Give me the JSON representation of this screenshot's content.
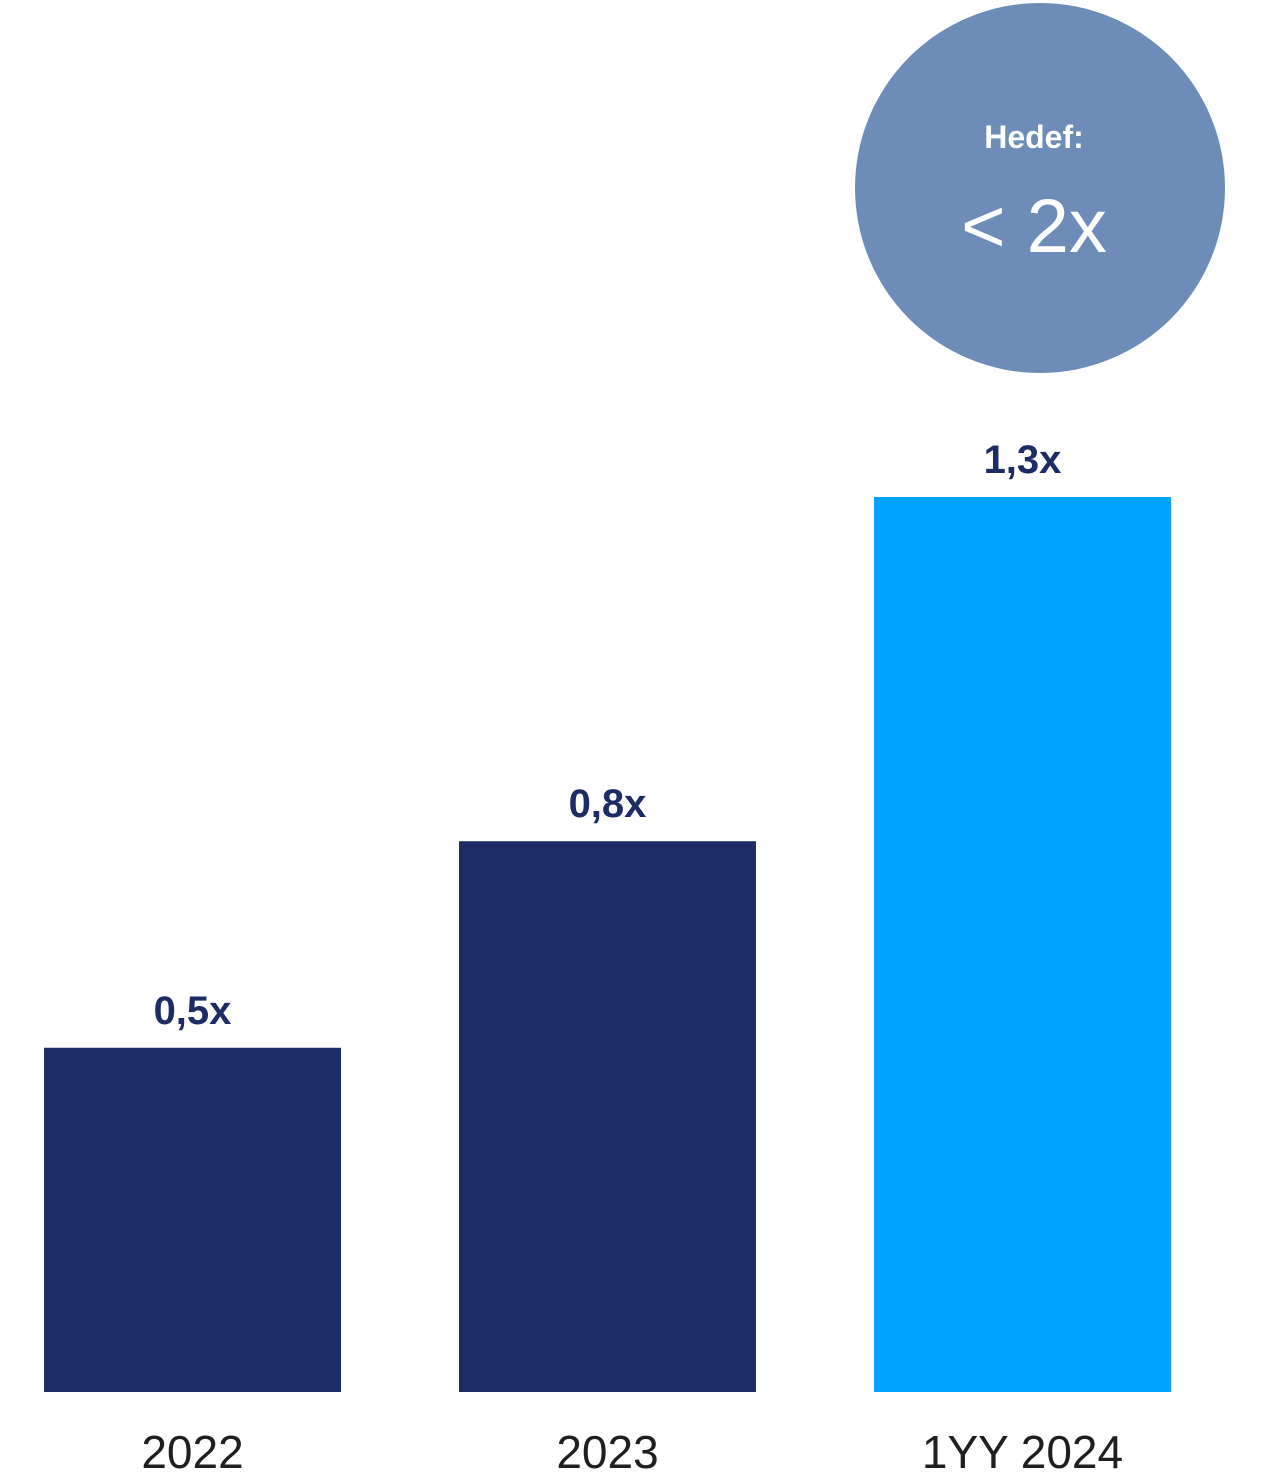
{
  "chart_data": {
    "type": "bar",
    "categories": [
      "2022",
      "2023",
      "1YY 2024"
    ],
    "values": [
      0.5,
      0.8,
      1.3
    ],
    "value_labels": [
      "0,5x",
      "0,8x",
      "1,3x"
    ],
    "ylim": [
      0,
      1.3
    ],
    "grid": false,
    "legend": "none",
    "colors": {
      "bar_default": "#1e2c66",
      "bar_highlight": "#00a3ff",
      "label": "#1e2c66",
      "target_circle": "#6d8db8"
    },
    "highlight_index": 2,
    "target": {
      "title": "Hedef:",
      "value": "< 2x"
    }
  }
}
